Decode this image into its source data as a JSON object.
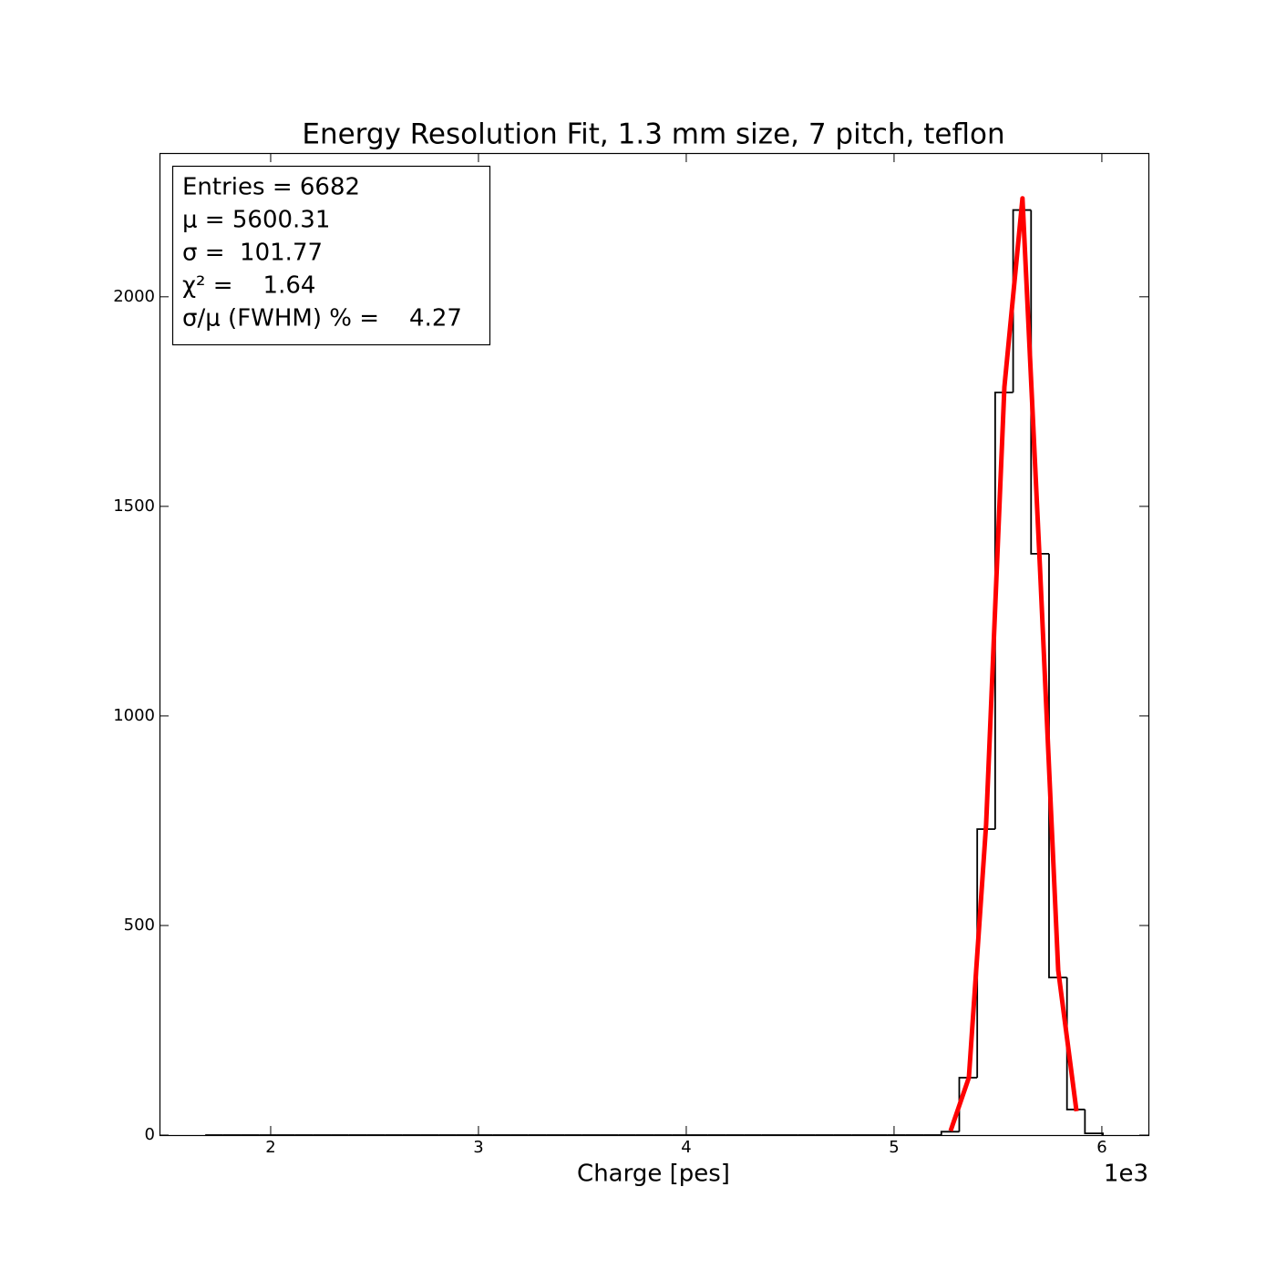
{
  "chart_data": {
    "type": "histogram",
    "title": "Energy Resolution Fit, 1.3 mm size, 7 pitch, teflon",
    "x_label": "Charge [pes]",
    "x_offset_label": "1e3",
    "xlim": [
      1465,
      6224
    ],
    "xticks": [
      {
        "value": 2000,
        "label": "2"
      },
      {
        "value": 3000,
        "label": "3"
      },
      {
        "value": 4000,
        "label": "4"
      },
      {
        "value": 5000,
        "label": "5"
      },
      {
        "value": 6000,
        "label": "6"
      }
    ],
    "ylim": [
      0,
      2343
    ],
    "yticks": [
      0,
      500,
      1000,
      1500,
      2000
    ],
    "stats": [
      "Entries = 6682",
      "μ = 5600.31",
      "σ =  101.77",
      "χ² =    1.64",
      "σ/μ (FWHM) % =    4.27"
    ],
    "bins": [
      1685.0,
      1771.4,
      1857.8,
      1944.2,
      2030.6,
      2117.0,
      2203.4,
      2289.8,
      2376.2,
      2462.6,
      2549.0,
      2635.4,
      2721.8,
      2808.2,
      2894.6,
      2981.0,
      3067.4,
      3153.8,
      3240.2,
      3326.6,
      3413.0,
      3499.4,
      3585.8,
      3672.2,
      3758.6,
      3845.0,
      3931.4,
      4017.8,
      4104.2,
      4190.6,
      4277.0,
      4363.4,
      4449.8,
      4536.2,
      4622.6,
      4709.0,
      4795.4,
      4881.8,
      4968.2,
      5054.6,
      5141.0,
      5227.4,
      5313.8,
      5400.2,
      5486.6,
      5573.0,
      5659.4,
      5745.8,
      5832.2,
      5918.6,
      6005.0
    ],
    "counts": [
      0,
      0,
      0,
      0,
      0,
      0,
      0,
      0,
      0,
      0,
      0,
      0,
      0,
      0,
      0,
      0,
      0,
      0,
      0,
      0,
      0,
      0,
      0,
      0,
      0,
      0,
      0,
      0,
      0,
      0,
      0,
      0,
      0,
      0,
      0,
      0,
      0,
      0,
      0,
      0,
      0,
      8,
      137,
      730,
      1772,
      2207,
      1387,
      376,
      61,
      4
    ],
    "color": "#000000",
    "fit": {
      "color": "#ff0000",
      "x": [
        5272,
        5360,
        5443,
        5531,
        5618,
        5702,
        5790,
        5878
      ],
      "values": [
        10,
        137,
        741,
        1785,
        2235,
        1356,
        393,
        57
      ]
    }
  }
}
